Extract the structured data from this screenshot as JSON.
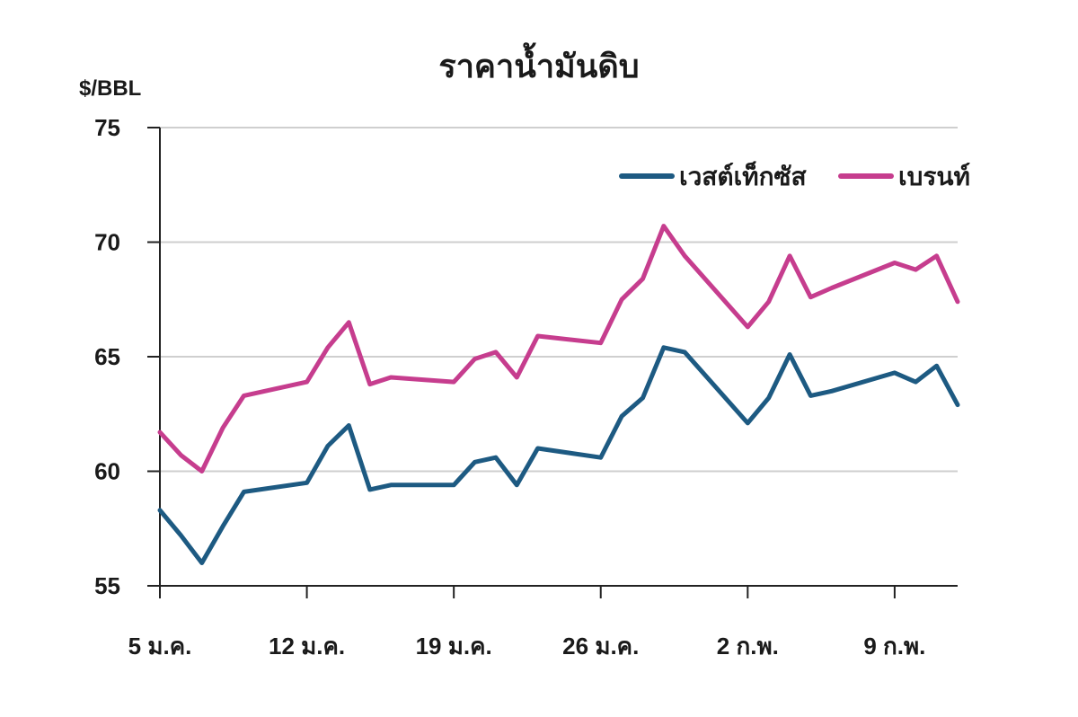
{
  "chart_data": {
    "type": "line",
    "title": "ราคาน้ำมันดิบ",
    "ylabel": "$/BBL",
    "xlabel": "",
    "ylim": [
      55,
      75
    ],
    "yticks": [
      55,
      60,
      65,
      70,
      75
    ],
    "grid": true,
    "legend_position": "top-right",
    "x_tick_labels": [
      "5 ม.ค.",
      "12 ม.ค.",
      "19 ม.ค.",
      "26 ม.ค.",
      "2 ก.พ.",
      "9 ก.พ."
    ],
    "x_tick_days": [
      5,
      12,
      19,
      26,
      33,
      40
    ],
    "x": [
      5,
      6,
      7,
      8,
      9,
      12,
      13,
      14,
      15,
      16,
      19,
      20,
      21,
      22,
      23,
      26,
      27,
      28,
      29,
      30,
      33,
      34,
      35,
      36,
      37,
      40,
      41,
      42,
      43
    ],
    "series": [
      {
        "name": "เวสต์เท็กซัส",
        "color": "#1d5a82",
        "values": [
          58.3,
          57.2,
          56.0,
          57.6,
          59.1,
          59.5,
          61.1,
          62.0,
          59.2,
          59.4,
          59.4,
          60.4,
          60.6,
          59.4,
          61.0,
          60.6,
          62.4,
          63.2,
          65.4,
          65.2,
          62.1,
          63.2,
          65.1,
          63.3,
          63.5,
          64.3,
          63.9,
          64.6,
          62.9
        ]
      },
      {
        "name": "เบรนท์",
        "color": "#c63d8e",
        "values": [
          61.7,
          60.7,
          60.0,
          61.9,
          63.3,
          63.9,
          65.4,
          66.5,
          63.8,
          64.1,
          63.9,
          64.9,
          65.2,
          64.1,
          65.9,
          65.6,
          67.5,
          68.4,
          70.7,
          69.4,
          66.3,
          67.4,
          69.4,
          67.6,
          68.0,
          69.1,
          68.8,
          69.4,
          67.4
        ]
      }
    ]
  }
}
